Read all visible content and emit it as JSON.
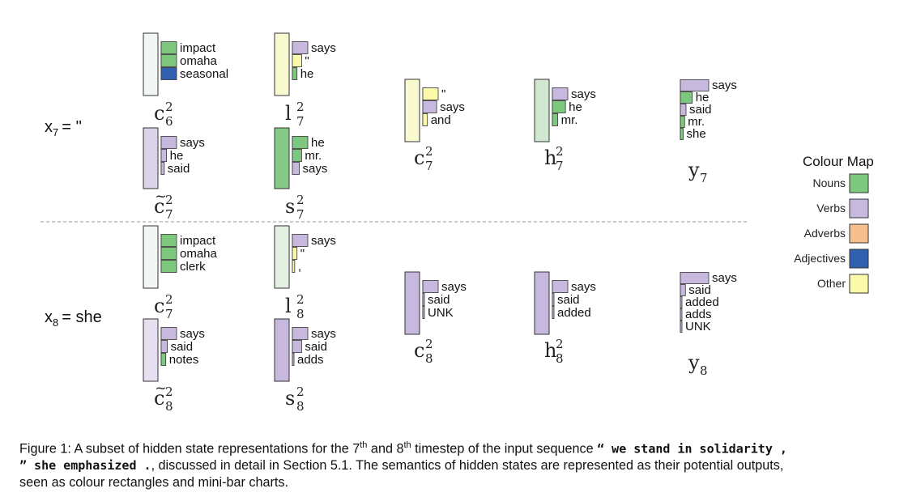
{
  "colors": {
    "Nouns": "#7ec77e",
    "Verbs": "#c7b8de",
    "Adverbs": "#f6bf8f",
    "Adjectives": "#3060ae",
    "Other": "#fafaaa"
  },
  "colour_map": {
    "title": "Colour Map",
    "entries": [
      {
        "label": "Nouns",
        "category": "Nouns"
      },
      {
        "label": "Verbs",
        "category": "Verbs"
      },
      {
        "label": "Adverbs",
        "category": "Adverbs"
      },
      {
        "label": "Adjectives",
        "category": "Adjectives"
      },
      {
        "label": "Other",
        "category": "Other"
      }
    ]
  },
  "rows": [
    {
      "label": "x",
      "sub": "7",
      "eq": "= ''"
    },
    {
      "label": "x",
      "sub": "8",
      "eq": "= she"
    }
  ],
  "states": [
    {
      "id": "c-6-top",
      "base": "c",
      "tilde": false,
      "sub": "6",
      "sup": "2",
      "fill": "#f3f7f3",
      "bars": [
        {
          "label": "impact",
          "cat": "Nouns",
          "value": 1.0
        },
        {
          "label": "omaha",
          "cat": "Nouns",
          "value": 1.0
        },
        {
          "label": "seasonal",
          "cat": "Adjectives",
          "value": 1.0
        }
      ]
    },
    {
      "id": "l-7-top",
      "base": "l",
      "tilde": false,
      "sub": "7",
      "sup": "2",
      "fill": "#fafad0",
      "bars": [
        {
          "label": "says",
          "cat": "Verbs",
          "value": 1.0
        },
        {
          "label": "\"",
          "cat": "Other",
          "value": 0.6
        },
        {
          "label": "he",
          "cat": "Nouns",
          "value": 0.3
        }
      ]
    },
    {
      "id": "ct-7-top",
      "base": "c",
      "tilde": true,
      "sub": "7",
      "sup": "2",
      "fill": "#dcd2ea",
      "bars": [
        {
          "label": "says",
          "cat": "Verbs",
          "value": 1.0
        },
        {
          "label": "he",
          "cat": "Verbs",
          "value": 0.35
        },
        {
          "label": "said",
          "cat": "Verbs",
          "value": 0.2
        }
      ]
    },
    {
      "id": "s-7-top",
      "base": "s",
      "tilde": false,
      "sub": "7",
      "sup": "2",
      "fill": "#86c986",
      "bars": [
        {
          "label": "he",
          "cat": "Nouns",
          "value": 1.0
        },
        {
          "label": "mr.",
          "cat": "Nouns",
          "value": 0.6
        },
        {
          "label": "says",
          "cat": "Verbs",
          "value": 0.45
        }
      ]
    },
    {
      "id": "c-7-mid",
      "base": "c",
      "tilde": false,
      "sub": "7",
      "sup": "2",
      "fill": "#fafad0",
      "bars": [
        {
          "label": "\"",
          "cat": "Other",
          "value": 1.0
        },
        {
          "label": "says",
          "cat": "Verbs",
          "value": 0.9
        },
        {
          "label": "and",
          "cat": "Other",
          "value": 0.3
        }
      ]
    },
    {
      "id": "h-7-mid",
      "base": "h",
      "tilde": false,
      "sub": "7",
      "sup": "2",
      "fill": "#cfe8cf",
      "bars": [
        {
          "label": "says",
          "cat": "Verbs",
          "value": 1.0
        },
        {
          "label": "he",
          "cat": "Nouns",
          "value": 0.85
        },
        {
          "label": "mr.",
          "cat": "Nouns",
          "value": 0.35
        }
      ]
    },
    {
      "id": "y-7",
      "base": "y",
      "tilde": false,
      "sub": "7",
      "sup": "",
      "fill": "",
      "bars": [
        {
          "label": "says",
          "cat": "Verbs",
          "value": 1.0
        },
        {
          "label": "he",
          "cat": "Nouns",
          "value": 0.42
        },
        {
          "label": "said",
          "cat": "Verbs",
          "value": 0.2
        },
        {
          "label": "mr.",
          "cat": "Nouns",
          "value": 0.15
        },
        {
          "label": "she",
          "cat": "Nouns",
          "value": 0.1
        }
      ]
    },
    {
      "id": "c-7-bot",
      "base": "c",
      "tilde": false,
      "sub": "7",
      "sup": "2",
      "fill": "#f3f7f3",
      "bars": [
        {
          "label": "impact",
          "cat": "Nouns",
          "value": 1.0
        },
        {
          "label": "omaha",
          "cat": "Nouns",
          "value": 1.0
        },
        {
          "label": "clerk",
          "cat": "Nouns",
          "value": 1.0
        }
      ]
    },
    {
      "id": "l-8",
      "base": "l",
      "tilde": false,
      "sub": "8",
      "sup": "2",
      "fill": "#e3f0e3",
      "bars": [
        {
          "label": "says",
          "cat": "Verbs",
          "value": 1.0
        },
        {
          "label": "\"",
          "cat": "Other",
          "value": 0.3
        },
        {
          "label": ",",
          "cat": "Other",
          "value": 0.15
        }
      ]
    },
    {
      "id": "ct-8",
      "base": "c",
      "tilde": true,
      "sub": "8",
      "sup": "2",
      "fill": "#e6dff0",
      "bars": [
        {
          "label": "says",
          "cat": "Verbs",
          "value": 1.0
        },
        {
          "label": "said",
          "cat": "Verbs",
          "value": 0.4
        },
        {
          "label": "notes",
          "cat": "Nouns",
          "value": 0.3
        }
      ]
    },
    {
      "id": "s-8",
      "base": "s",
      "tilde": false,
      "sub": "8",
      "sup": "2",
      "fill": "#c7b8de",
      "bars": [
        {
          "label": "says",
          "cat": "Verbs",
          "value": 1.0
        },
        {
          "label": "said",
          "cat": "Verbs",
          "value": 0.6
        },
        {
          "label": "adds",
          "cat": "Verbs",
          "value": 0.1
        }
      ]
    },
    {
      "id": "c-8-mid",
      "base": "c",
      "tilde": false,
      "sub": "8",
      "sup": "2",
      "fill": "#c7b8de",
      "bars": [
        {
          "label": "says",
          "cat": "Verbs",
          "value": 1.0
        },
        {
          "label": "said",
          "cat": "Verbs",
          "value": 0.08
        },
        {
          "label": "UNK",
          "cat": "Verbs",
          "value": 0.05
        }
      ]
    },
    {
      "id": "h-8-mid",
      "base": "h",
      "tilde": false,
      "sub": "8",
      "sup": "2",
      "fill": "#c7b8de",
      "bars": [
        {
          "label": "says",
          "cat": "Verbs",
          "value": 1.0
        },
        {
          "label": "said",
          "cat": "Verbs",
          "value": 0.08
        },
        {
          "label": "added",
          "cat": "Verbs",
          "value": 0.05
        }
      ]
    },
    {
      "id": "y-8",
      "base": "y",
      "tilde": false,
      "sub": "8",
      "sup": "",
      "fill": "",
      "bars": [
        {
          "label": "says",
          "cat": "Verbs",
          "value": 1.0
        },
        {
          "label": "said",
          "cat": "Verbs",
          "value": 0.18
        },
        {
          "label": "added",
          "cat": "Verbs",
          "value": 0.05
        },
        {
          "label": "adds",
          "cat": "Verbs",
          "value": 0.05
        },
        {
          "label": "UNK",
          "cat": "Verbs",
          "value": 0.05
        }
      ]
    }
  ],
  "caption": {
    "prefix": "Figure 1: A subset of hidden state representations for the 7",
    "sup1": "th",
    "mid": " and 8",
    "sup2": "th",
    "after": " timestep of the input sequence ",
    "seq1": "“ we stand in solidarity ,",
    "seq2": "” she emphasized .",
    "rest1": ", discussed in detail in Section 5.1. The semantics of hidden states are represented as their potential outputs,",
    "rest2": "seen as colour rectangles and mini-bar charts."
  }
}
